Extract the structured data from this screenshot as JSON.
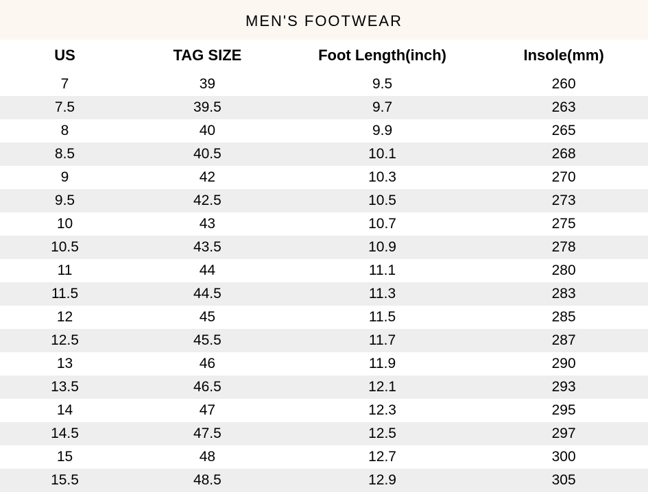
{
  "title": "MEN'S  FOOTWEAR",
  "title_background_color": "#fdf7f2",
  "columns": [
    "US",
    "TAG SIZE",
    "Foot Length(inch)",
    "Insole(mm)"
  ],
  "row_stripe_color": "#eeeeee",
  "row_base_color": "#ffffff",
  "rows": [
    [
      "7",
      "39",
      "9.5",
      "260"
    ],
    [
      "7.5",
      "39.5",
      "9.7",
      "263"
    ],
    [
      "8",
      "40",
      "9.9",
      "265"
    ],
    [
      "8.5",
      "40.5",
      "10.1",
      "268"
    ],
    [
      "9",
      "42",
      "10.3",
      "270"
    ],
    [
      "9.5",
      "42.5",
      "10.5",
      "273"
    ],
    [
      "10",
      "43",
      "10.7",
      "275"
    ],
    [
      "10.5",
      "43.5",
      "10.9",
      "278"
    ],
    [
      "11",
      "44",
      "11.1",
      "280"
    ],
    [
      "11.5",
      "44.5",
      "11.3",
      "283"
    ],
    [
      "12",
      "45",
      "11.5",
      "285"
    ],
    [
      "12.5",
      "45.5",
      "11.7",
      "287"
    ],
    [
      "13",
      "46",
      "11.9",
      "290"
    ],
    [
      "13.5",
      "46.5",
      "12.1",
      "293"
    ],
    [
      "14",
      "47",
      "12.3",
      "295"
    ],
    [
      "14.5",
      "47.5",
      "12.5",
      "297"
    ],
    [
      "15",
      "48",
      "12.7",
      "300"
    ],
    [
      "15.5",
      "48.5",
      "12.9",
      "305"
    ]
  ]
}
